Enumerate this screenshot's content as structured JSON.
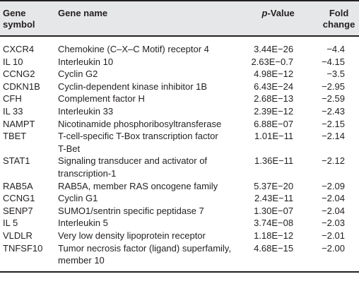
{
  "table": {
    "headers": {
      "symbol_line1": "Gene",
      "symbol_line2": "symbol",
      "name": "Gene name",
      "pvalue_italic": "p",
      "pvalue_rest": "-Value",
      "fold_line1": "Fold",
      "fold_line2": "change"
    },
    "rows": [
      {
        "symbol": "CXCR4",
        "name": "Chemokine (C–X–C Motif) receptor 4",
        "name2": "",
        "p": "3.44E−26",
        "fold": "−4.4"
      },
      {
        "symbol": "IL 10",
        "name": "Interleukin 10",
        "name2": "",
        "p": "2.63E−0.7",
        "fold": "−4.15"
      },
      {
        "symbol": "CCNG2",
        "name": "Cyclin G2",
        "name2": "",
        "p": "4.98E−12",
        "fold": "−3.5"
      },
      {
        "symbol": "CDKN1B",
        "name": "Cyclin-dependent kinase inhibitor 1B",
        "name2": "",
        "p": "6.43E−24",
        "fold": "−2.95"
      },
      {
        "symbol": "CFH",
        "name": "Complement factor H",
        "name2": "",
        "p": "2.68E−13",
        "fold": "−2.59"
      },
      {
        "symbol": "IL 33",
        "name": "Interleukin 33",
        "name2": "",
        "p": "2.39E−12",
        "fold": "−2.43"
      },
      {
        "symbol": "NAMPT",
        "name": "Nicotinamide phosphoribosyltransferase",
        "name2": "",
        "p": "6.88E−07",
        "fold": "−2.15"
      },
      {
        "symbol": "TBET",
        "name": "T-cell-specific T-Box transcription factor",
        "name2": "T-Bet",
        "p": "1.01E−11",
        "fold": "−2.14"
      },
      {
        "symbol": "STAT1",
        "name": "Signaling transducer and activator of",
        "name2": "transcription-1",
        "p": "1.36E−11",
        "fold": "−2.12"
      },
      {
        "symbol": "RAB5A",
        "name": "RAB5A, member RAS oncogene family",
        "name2": "",
        "p": "5.37E−20",
        "fold": "−2.09"
      },
      {
        "symbol": "CCNG1",
        "name": "Cyclin G1",
        "name2": "",
        "p": "2.43E−11",
        "fold": "−2.04"
      },
      {
        "symbol": "SENP7",
        "name": "SUMO1/sentrin specific peptidase 7",
        "name2": "",
        "p": "1.30E−07",
        "fold": "−2.04"
      },
      {
        "symbol": "IL 5",
        "name": "Interleukin 5",
        "name2": "",
        "p": "3.74E−08",
        "fold": "−2.03"
      },
      {
        "symbol": "VLDLR",
        "name": "Very low density lipoprotein receptor",
        "name2": "",
        "p": "1.18E−12",
        "fold": "−2.01"
      },
      {
        "symbol": "TNFSF10",
        "name": "Tumor necrosis factor (ligand) superfamily,",
        "name2": "member 10",
        "p": "4.68E−15",
        "fold": "−2.00"
      }
    ]
  }
}
